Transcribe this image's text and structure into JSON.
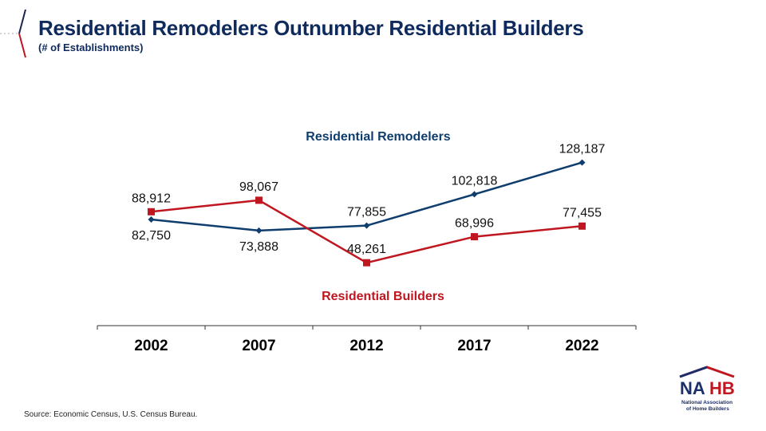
{
  "header": {
    "title": "Residential Remodelers Outnumber Residential Builders",
    "subtitle": "(# of Establishments)"
  },
  "footer": {
    "source": "Source:  Economic Census, U.S. Census Bureau."
  },
  "logo": {
    "text": "NAHB",
    "tagline_1": "National Association",
    "tagline_2": "of Home Builders"
  },
  "chart_data": {
    "type": "line",
    "categories": [
      "2002",
      "2007",
      "2012",
      "2017",
      "2022"
    ],
    "series": [
      {
        "name": "Residential Remodelers",
        "color": "#0f3d6e",
        "marker": "diamond",
        "values": [
          82750,
          73888,
          77855,
          102818,
          128187
        ],
        "labels": [
          "82,750",
          "73,888",
          "77,855",
          "102,818",
          "128,187"
        ]
      },
      {
        "name": "Residential Builders",
        "color": "#c0161f",
        "marker": "square",
        "values": [
          88912,
          98067,
          48261,
          68996,
          77455
        ],
        "labels": [
          "88,912",
          "98,067",
          "48,261",
          "68,996",
          "77,455"
        ]
      }
    ],
    "ylim": [
      0,
      140000
    ],
    "grid": false,
    "legend": "inline labels"
  }
}
